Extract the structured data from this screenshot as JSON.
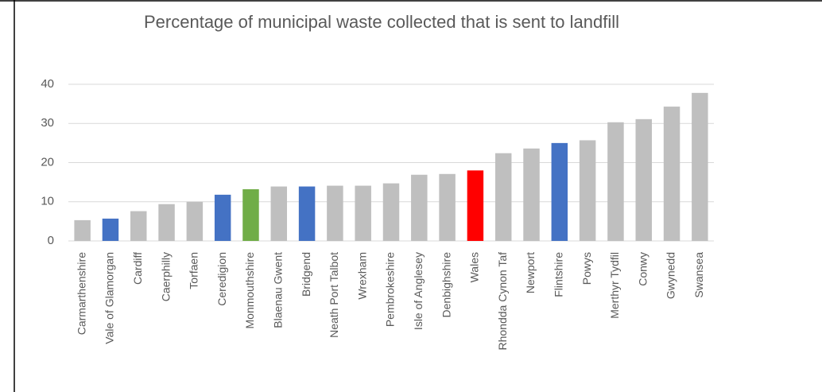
{
  "chart_data": {
    "type": "bar",
    "title": "Percentage of municipal waste collected that is sent to landfill",
    "categories": [
      "Carmarthenshire",
      "Vale of Glamorgan",
      "Cardiff",
      "Caerphilly",
      "Torfaen",
      "Ceredigion",
      "Monmouthshire",
      "Blaenau Gwent",
      "Bridgend",
      "Neath Port Talbot",
      "Wrexham",
      "Pembrokeshire",
      "Isle of Anglesey",
      "Denbighshire",
      "Wales",
      "Rhondda Cynon Taf",
      "Newport",
      "Flintshire",
      "Powys",
      "Merthyr Tydfil",
      "Conwy",
      "Gwynedd",
      "Swansea"
    ],
    "values": [
      5.3,
      5.7,
      7.6,
      9.4,
      10,
      11.8,
      13.2,
      13.9,
      13.9,
      14.1,
      14.1,
      14.7,
      16.9,
      17.1,
      18,
      22.4,
      23.6,
      25,
      25.7,
      30.3,
      31.1,
      34.3,
      37.8
    ],
    "colors": [
      "#bfbfbf",
      "#4472c4",
      "#bfbfbf",
      "#bfbfbf",
      "#bfbfbf",
      "#4472c4",
      "#70ad47",
      "#bfbfbf",
      "#4472c4",
      "#bfbfbf",
      "#bfbfbf",
      "#bfbfbf",
      "#bfbfbf",
      "#bfbfbf",
      "#ff0000",
      "#bfbfbf",
      "#bfbfbf",
      "#4472c4",
      "#bfbfbf",
      "#bfbfbf",
      "#bfbfbf",
      "#bfbfbf",
      "#bfbfbf"
    ],
    "ylim": [
      0,
      40
    ],
    "yticks": [
      0,
      10,
      20,
      30,
      40
    ],
    "grid": true
  }
}
